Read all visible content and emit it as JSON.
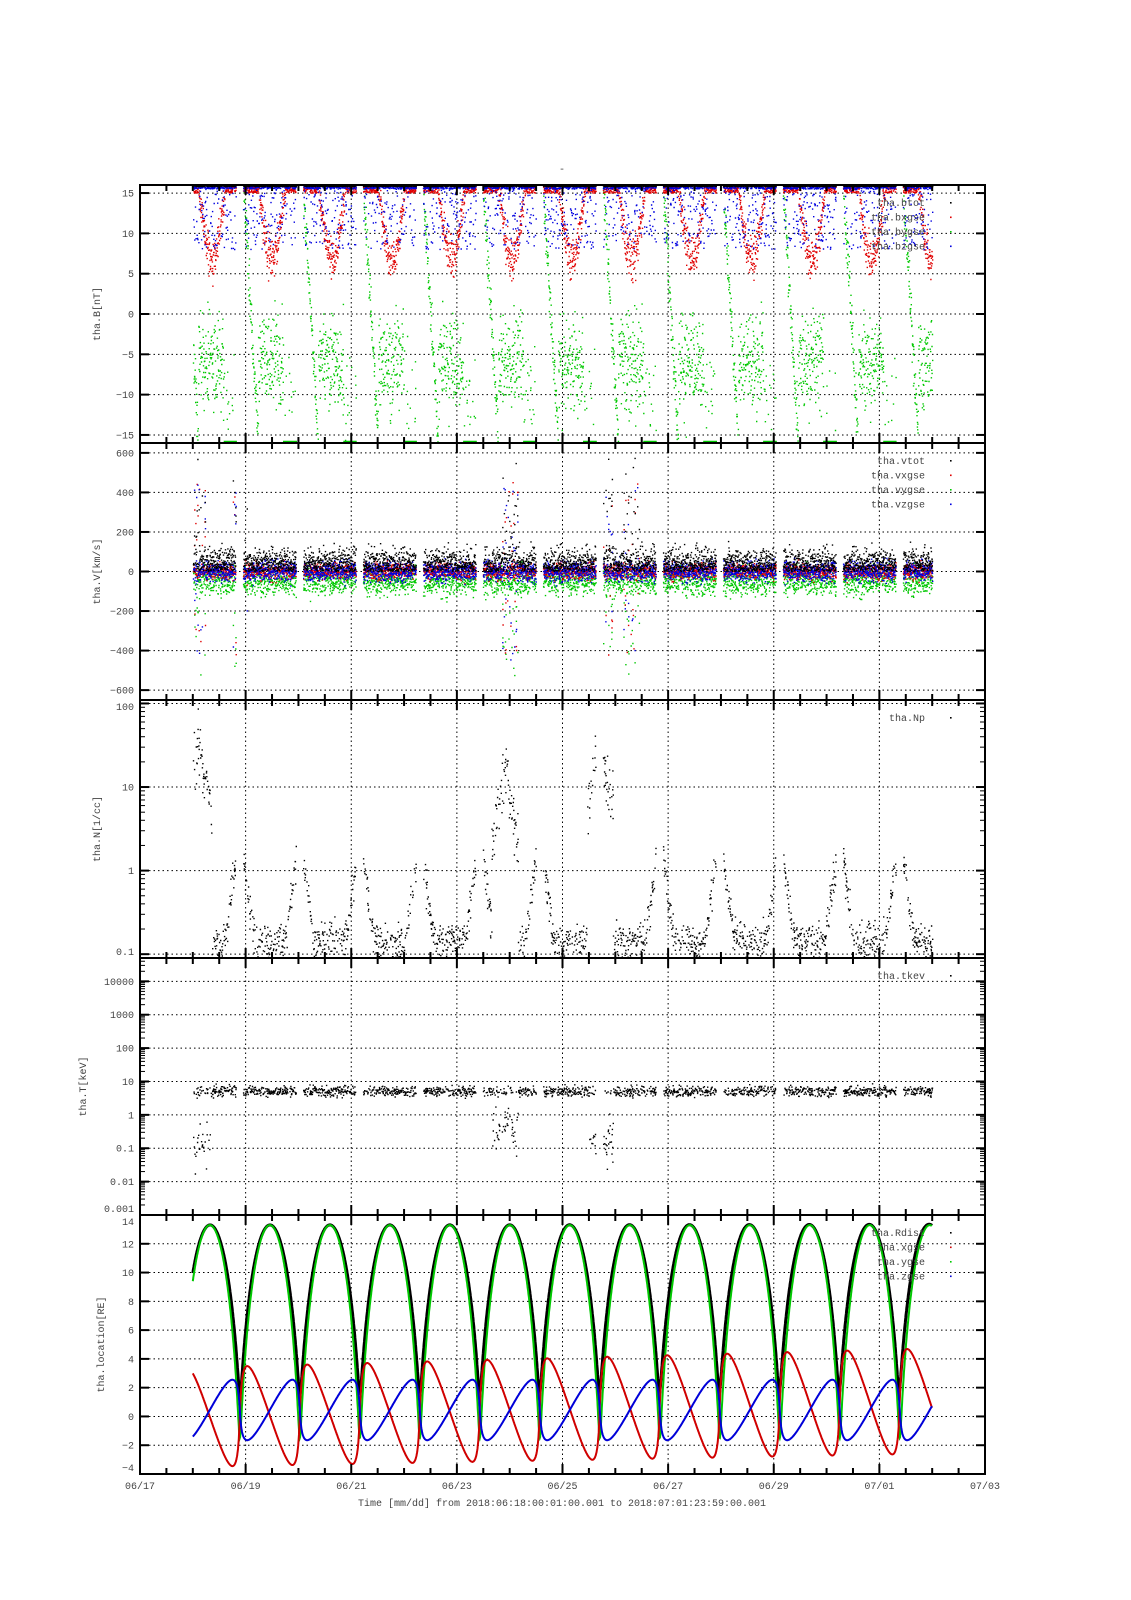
{
  "title": "-",
  "xlabel": "Time [mm/dd]  from 2018:06:18:00:01:00.001  to  2018:07:01:23:59:00.001",
  "x_axis": {
    "unit": "days since 2018-06-17 00:00",
    "xlim": [
      0,
      16
    ],
    "major_ticks": [
      0,
      2,
      4,
      6,
      8,
      10,
      12,
      14,
      16
    ],
    "major_labels": [
      "06/17",
      "06/19",
      "06/21",
      "06/23",
      "06/25",
      "06/27",
      "06/29",
      "07/01",
      "07/03"
    ],
    "minor_step": 0.5,
    "data_range": [
      1.0,
      15.0
    ]
  },
  "chart_data": [
    {
      "type": "scatter",
      "ylabel": "tha.B[nT]",
      "yscale": "linear",
      "ylim": [
        -16,
        16
      ],
      "yticks": [
        -15,
        -10,
        -5,
        0,
        5,
        10,
        15
      ],
      "grid": true,
      "legend_placement": "top-right",
      "series": [
        {
          "name": "tha.btot",
          "color": "#000000",
          "typical": 16
        },
        {
          "name": "tha.bxgse",
          "color": "#e00000",
          "apogee_min": 4,
          "typical": 12
        },
        {
          "name": "tha.bygse",
          "color": "#00c800",
          "apogee_typical": -6,
          "range": [
            -16,
            16
          ]
        },
        {
          "name": "tha.bzgse",
          "color": "#0000e0",
          "typical": 15
        }
      ]
    },
    {
      "type": "scatter",
      "ylabel": "tha.V[km/s]",
      "yscale": "linear",
      "ylim": [
        -650,
        650
      ],
      "yticks": [
        -600,
        -400,
        -200,
        0,
        200,
        400,
        600
      ],
      "grid": true,
      "legend_placement": "top-right",
      "series": [
        {
          "name": "tha.vtot",
          "color": "#000000",
          "typical": 60
        },
        {
          "name": "tha.vxgse",
          "color": "#e00000",
          "typical": 0
        },
        {
          "name": "tha.vygse",
          "color": "#00c800",
          "typical": -60
        },
        {
          "name": "tha.vzgse",
          "color": "#0000e0",
          "typical": 0
        }
      ],
      "spike_days": [
        1.1,
        1.9,
        7.0,
        8.8,
        9.3
      ]
    },
    {
      "type": "scatter",
      "ylabel": "tha.N[1/cc]",
      "yscale": "log",
      "ylim": [
        0.09,
        110
      ],
      "yticks": [
        0.1,
        1,
        10,
        100
      ],
      "ytick_labels": [
        "0.1",
        "1",
        "10",
        "100"
      ],
      "grid": true,
      "legend_placement": "top-right",
      "series": [
        {
          "name": "tha.Np",
          "color": "#000000",
          "typical": 0.2
        }
      ],
      "peaks": [
        {
          "day": 1.1,
          "value": 35
        },
        {
          "day": 6.9,
          "value": 15
        },
        {
          "day": 8.7,
          "value": 40
        }
      ]
    },
    {
      "type": "scatter",
      "ylabel": "tha.T[keV]",
      "yscale": "log",
      "ylim": [
        0.001,
        50000
      ],
      "yticks": [
        0.001,
        0.01,
        0.1,
        1,
        10,
        100,
        1000,
        10000
      ],
      "ytick_labels": [
        "0.001",
        "0.01",
        "0.1",
        "1",
        "10",
        "100",
        "1000",
        "10000"
      ],
      "grid": true,
      "legend_placement": "top-right",
      "series": [
        {
          "name": "tha.tkev",
          "color": "#000000",
          "typical": 5
        }
      ],
      "dips": [
        {
          "day": 1.1,
          "value": 0.15
        },
        {
          "day": 6.9,
          "value": 0.5
        },
        {
          "day": 8.7,
          "value": 0.2
        }
      ]
    },
    {
      "type": "line",
      "ylabel": "tha.location[RE]",
      "yscale": "linear",
      "ylim": [
        -4,
        14
      ],
      "yticks": [
        -4,
        -2,
        0,
        2,
        4,
        6,
        8,
        10,
        12,
        14
      ],
      "grid": true,
      "legend_placement": "top-right",
      "orbit": {
        "period_days": 1.136,
        "first_perigee_day": 1.89,
        "apogee_RE": 13.3,
        "perigee_RE": 1.5
      },
      "series": [
        {
          "name": "tha.Rdist",
          "color": "#000000",
          "range": [
            1.5,
            13.3
          ]
        },
        {
          "name": "tha.xgse",
          "color": "#d00000",
          "max_first": 3.4,
          "max_last": 4.7,
          "min_first": -3.5,
          "min_last": -2.6
        },
        {
          "name": "tha.ygse",
          "color": "#00c800",
          "range": [
            -1.5,
            13.3
          ]
        },
        {
          "name": "tha.zgse",
          "color": "#0000d8",
          "range": [
            -1.7,
            2.6
          ]
        }
      ]
    }
  ]
}
